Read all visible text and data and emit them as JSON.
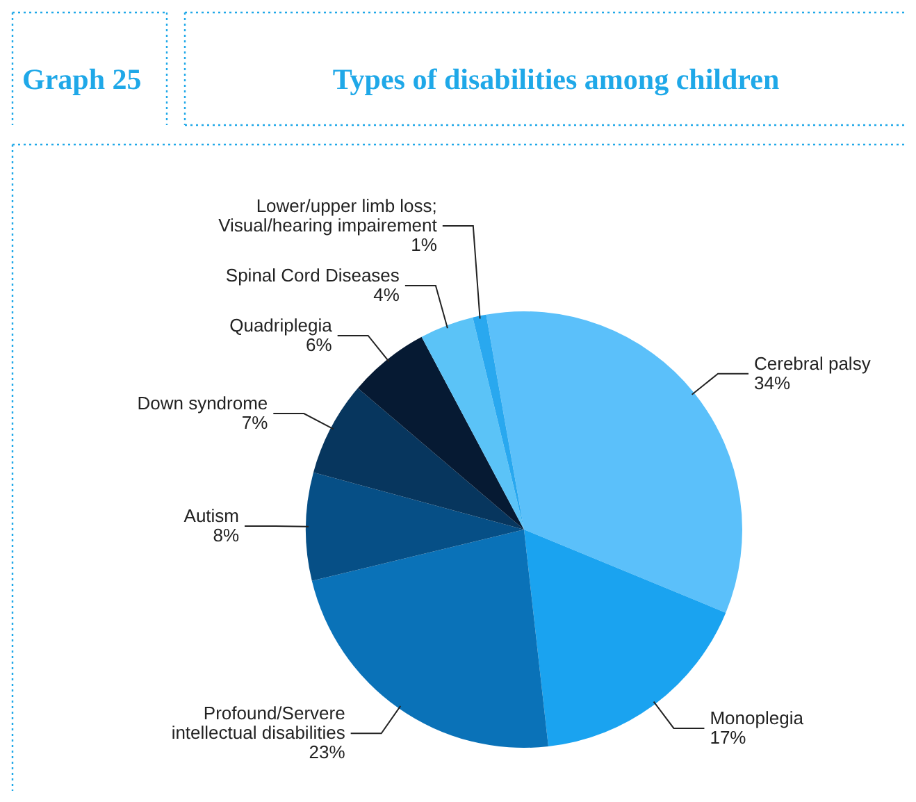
{
  "chart_data": {
    "type": "pie",
    "title": "Types of disabilities among children",
    "annotations": [
      "Graph 25"
    ],
    "categories": [
      "Cerebral palsy",
      "Monoplegia",
      "Profound/Servere intellectual disabilities",
      "Autism",
      "Down syndrome",
      "Quadriplegia",
      "Spinal Cord Diseases",
      "Lower/upper limb loss; Visual/hearing impairement"
    ],
    "values": [
      34,
      17,
      23,
      8,
      7,
      6,
      4,
      1
    ],
    "value_labels": [
      "34%",
      "17%",
      "23%",
      "8%",
      "7%",
      "6%",
      "4%",
      "1%"
    ],
    "colors": [
      "#5bc0fa",
      "#1aa3f0",
      "#0a72b8",
      "#064f86",
      "#07365e",
      "#061a33",
      "#5bc3f7",
      "#29a8ef"
    ]
  }
}
